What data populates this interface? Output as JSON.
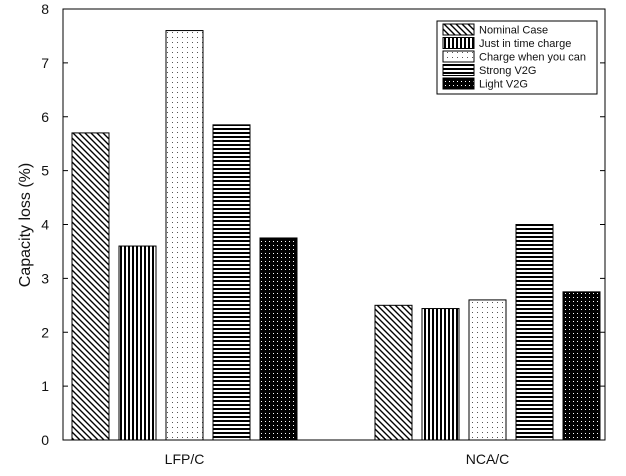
{
  "chart_data": {
    "type": "bar",
    "title": "",
    "xlabel": "",
    "ylabel": "Capacity loss (%)",
    "ylim": [
      0,
      8
    ],
    "yticks": [
      0,
      1,
      2,
      3,
      4,
      5,
      6,
      7,
      8
    ],
    "categories": [
      "LFP/C",
      "NCA/C"
    ],
    "series": [
      {
        "name": "Nominal Case",
        "pattern": "diagonal",
        "values": [
          5.7,
          2.5
        ]
      },
      {
        "name": "Just in time charge",
        "pattern": "vertical",
        "values": [
          3.6,
          2.44
        ]
      },
      {
        "name": "Charge when you can",
        "pattern": "sparse-dots",
        "values": [
          7.6,
          2.6
        ]
      },
      {
        "name": "Strong V2G",
        "pattern": "horizontal",
        "values": [
          5.85,
          4.0
        ]
      },
      {
        "name": "Light V2G",
        "pattern": "dense-dots",
        "values": [
          3.75,
          2.75
        ]
      }
    ],
    "legend_position": "top-right",
    "grid": false
  },
  "colors": {
    "stroke": "#000000",
    "background": "#ffffff"
  }
}
